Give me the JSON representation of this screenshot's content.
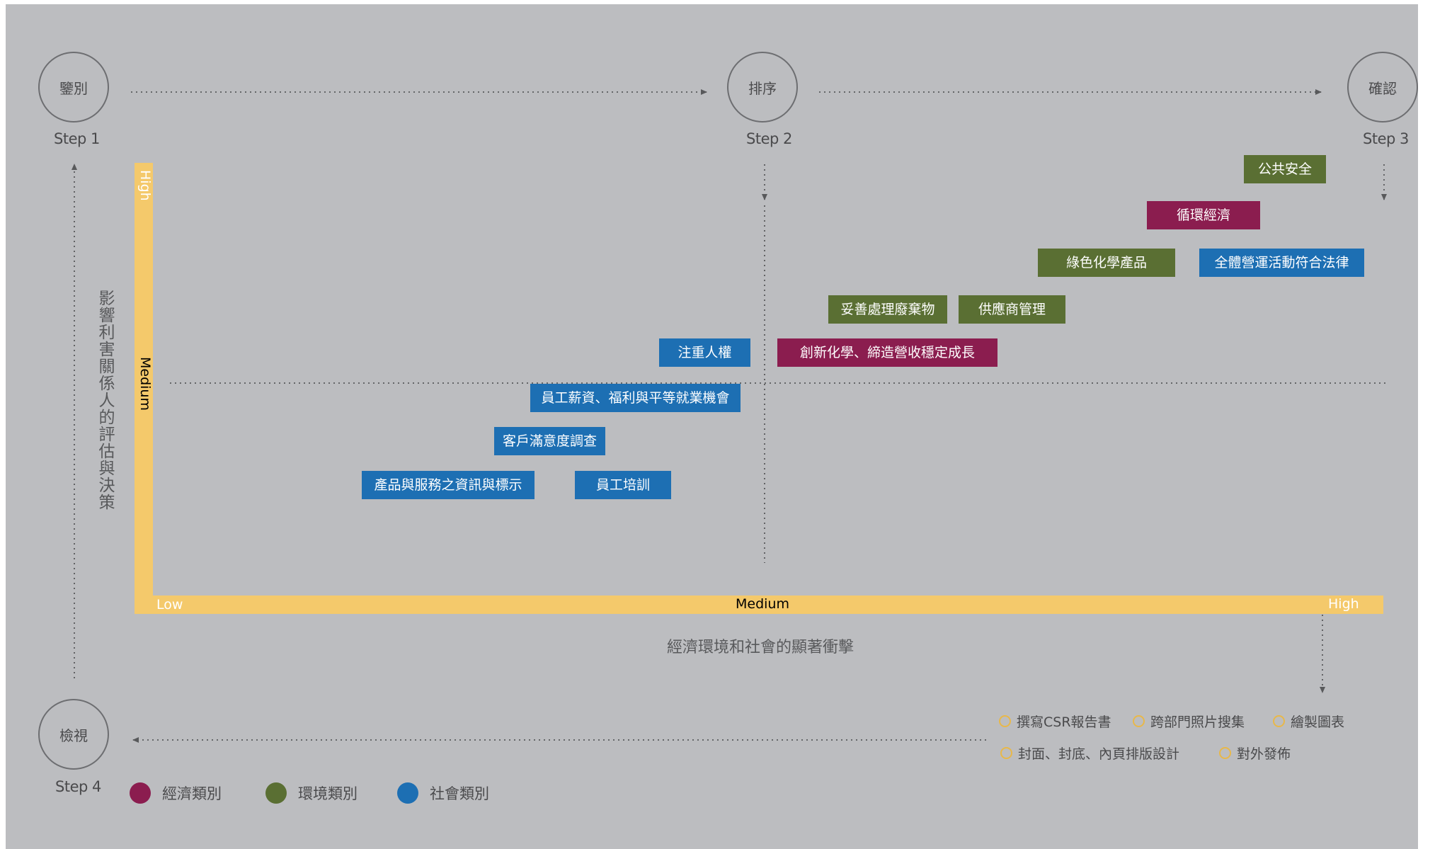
{
  "steps": {
    "s1": {
      "circle": "鑒別",
      "label": "Step 1"
    },
    "s2": {
      "circle": "排序",
      "label": "Step 2"
    },
    "s3": {
      "circle": "確認",
      "label": "Step 3"
    },
    "s4": {
      "circle": "檢視",
      "label": "Step 4"
    }
  },
  "axes": {
    "y_title": "影響利害關係人的評估與決策",
    "x_title": "經濟環境和社會的顯著衝擊",
    "y_high": "High",
    "y_medium": "Medium",
    "x_low": "Low",
    "x_medium": "Medium",
    "x_high": "High"
  },
  "tags": {
    "public_safety": "公共安全",
    "circular_economy": "循環經濟",
    "green_chem": "綠色化學產品",
    "compliance": "全體營運活動符合法律",
    "waste": "妥善處理廢棄物",
    "supplier": "供應商管理",
    "human_rights": "注重人權",
    "innovation": "創新化學、締造營收穩定成長",
    "salary": "員工薪資、福利與平等就業機會",
    "satisfaction": "客戶滿意度調查",
    "product_info": "產品與服務之資訊與標示",
    "training": "員工培訓"
  },
  "tasks": {
    "t1": "撰寫CSR報告書",
    "t2": "跨部門照片搜集",
    "t3": "繪製圖表",
    "t4": "封面、封底、內頁排版設計",
    "t5": "對外發佈"
  },
  "legend": {
    "econ": "經濟類別",
    "env": "環境類別",
    "soc": "社會類別"
  },
  "colors": {
    "economic": "#8b1d4f",
    "environment": "#5a6f33",
    "social": "#1d6fb3",
    "axis_bar": "#f4c96b",
    "background": "#bcbdc0"
  }
}
